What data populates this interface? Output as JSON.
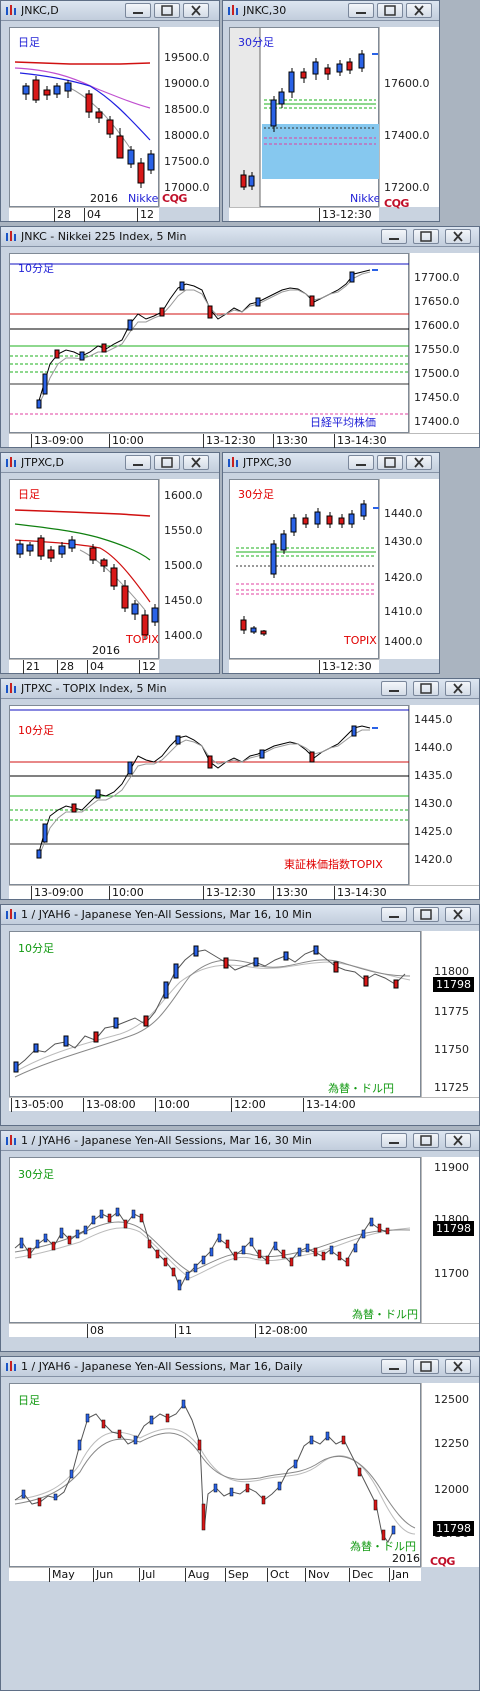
{
  "windows": {
    "jnkc_d": {
      "title": "JNKC,D",
      "label": "日足",
      "label_color": "#1f1fd6",
      "ticks": [
        "19500.0",
        "19000.0",
        "18500.0",
        "18000.0",
        "17500.0",
        "17000.0"
      ],
      "x_labels": [
        "28",
        "04",
        "12"
      ],
      "year": "2016",
      "tag": "Nikkei",
      "logo": "CQG"
    },
    "jnkc_30": {
      "title": "JNKC,30",
      "label": "30分足",
      "label_color": "#1f1fd6",
      "ticks": [
        "17600.0",
        "17400.0",
        "17200.0"
      ],
      "x_labels": [
        "13-12:30"
      ],
      "tag": "Nikkei",
      "logo": "CQG"
    },
    "jnkc_5": {
      "title": "JNKC - Nikkei 225 Index, 5 Min",
      "label": "10分足",
      "label_color": "#1f1fd6",
      "ticks": [
        "17700.0",
        "17650.0",
        "17600.0",
        "17550.0",
        "17500.0",
        "17450.0",
        "17400.0"
      ],
      "x_labels": [
        "13-09:00",
        "10:00",
        "13-12:30",
        "13:30",
        "13-14:30"
      ],
      "tag": "日経平均株価"
    },
    "jtpxc_d": {
      "title": "JTPXC,D",
      "label": "日足",
      "label_color": "#e00000",
      "ticks": [
        "1600.0",
        "1550.0",
        "1500.0",
        "1450.0",
        "1400.0"
      ],
      "x_labels": [
        "21",
        "28",
        "04",
        "12"
      ],
      "year": "2016",
      "tag": "TOPIX"
    },
    "jtpxc_30": {
      "title": "JTPXC,30",
      "label": "30分足",
      "label_color": "#e00000",
      "ticks": [
        "1440.0",
        "1430.0",
        "1420.0",
        "1410.0",
        "1400.0"
      ],
      "x_labels": [
        "13-12:30"
      ],
      "tag": "TOPIX"
    },
    "jtpxc_5": {
      "title": "JTPXC - TOPIX Index, 5 Min",
      "label": "10分足",
      "label_color": "#e00000",
      "ticks": [
        "1445.0",
        "1440.0",
        "1435.0",
        "1430.0",
        "1425.0",
        "1420.0"
      ],
      "x_labels": [
        "13-09:00",
        "10:00",
        "13-12:30",
        "13:30",
        "13-14:30"
      ],
      "tag": "東証株価指数TOPIX"
    },
    "jyah6_10": {
      "title": "1 / JYAH6 - Japanese Yen-All Sessions, Mar 16, 10 Min",
      "label": "10分足",
      "label_color": "#119911",
      "ticks": [
        "11800",
        "11775",
        "11750",
        "11725"
      ],
      "price": "11798",
      "x_labels": [
        "13-05:00",
        "13-08:00",
        "10:00",
        "12:00",
        "13-14:00"
      ],
      "tag": "為替・ドル円"
    },
    "jyah6_30": {
      "title": "1 / JYAH6 - Japanese Yen-All Sessions, Mar 16, 30 Min",
      "label": "30分足",
      "label_color": "#119911",
      "ticks": [
        "11900",
        "11800",
        "11700"
      ],
      "price": "11798",
      "x_labels": [
        "08",
        "11",
        "12-08:00"
      ],
      "tag": "為替・ドル円"
    },
    "jyah6_d": {
      "title": "1 / JYAH6 - Japanese Yen-All Sessions, Mar 16, Daily",
      "label": "日足",
      "label_color": "#119911",
      "ticks": [
        "12500",
        "12250",
        "12000",
        "11750"
      ],
      "price": "11798",
      "x_labels": [
        "May",
        "Jun",
        "Jul",
        "Aug",
        "Sep",
        "Oct",
        "Nov",
        "Dec",
        "Jan"
      ],
      "year": "2016",
      "tag": "為替・ドル円",
      "logo": "CQG"
    }
  },
  "colors": {
    "up": "#2a62e6",
    "down": "#d81818",
    "bull_body": "#2a62e6",
    "bear_body": "#d81818",
    "black": "#000000"
  }
}
